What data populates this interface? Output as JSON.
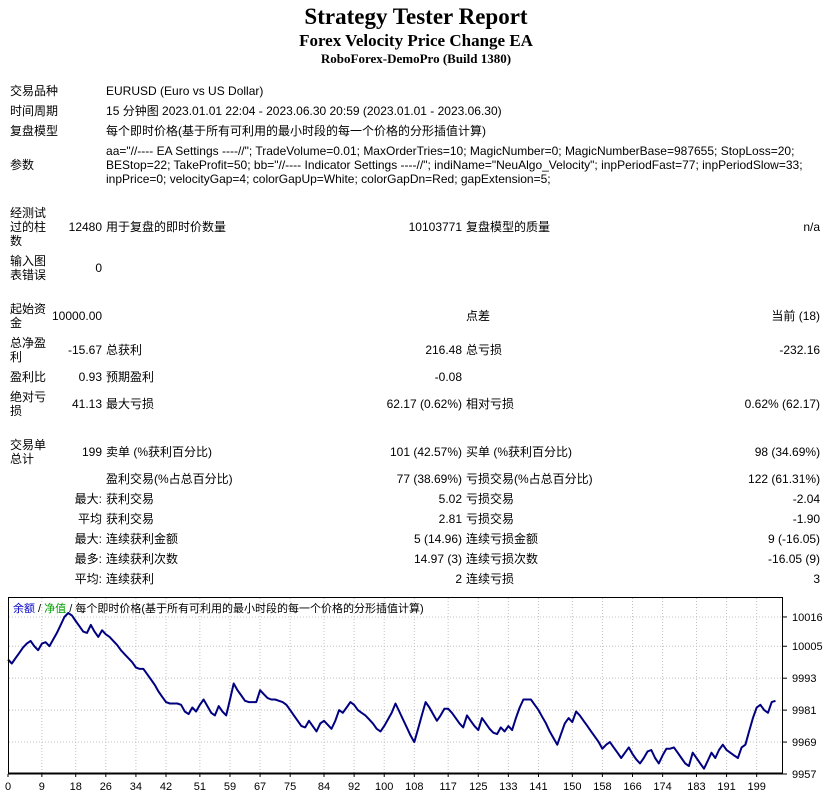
{
  "header": {
    "title": "Strategy Tester Report",
    "ea_name": "Forex Velocity Price Change EA",
    "server": "RoboForex-DemoPro (Build 1380)"
  },
  "report": {
    "rows": [
      {
        "kind": "wide",
        "label": "交易品种",
        "value": "EURUSD (Euro vs US Dollar)"
      },
      {
        "kind": "wide",
        "label": "时间周期",
        "value": "15 分钟图 2023.01.01 22:04 - 2023.06.30 20:59 (2023.01.01 - 2023.06.30)"
      },
      {
        "kind": "wide",
        "label": "复盘模型",
        "value": "每个即时价格(基于所有可利用的最小时段的每一个价格的分形插值计算)"
      },
      {
        "kind": "wide",
        "label": "参数",
        "value": "aa=\"//---- EA Settings ----//\"; TradeVolume=0.01; MaxOrderTries=10; MagicNumber=0; MagicNumberBase=987655; StopLoss=20; BEStop=22; TakeProfit=50; bb=\"//---- Indicator Settings ----//\"; indiName=\"NeuAlgo_Velocity\"; inpPeriodFast=77; inpPeriodSlow=33; inpPrice=0; velocityGap=4; colorGapUp=White; colorGapDn=Red; gapExtension=5;"
      },
      {
        "kind": "gap"
      },
      {
        "kind": "cells",
        "cells": [
          "经测试过的柱数",
          "12480",
          "用于复盘的即时价数量",
          "10103771",
          "复盘模型的质量",
          "n/a"
        ]
      },
      {
        "kind": "cells",
        "cells": [
          "输入图表错误",
          "0",
          "",
          "",
          "",
          ""
        ]
      },
      {
        "kind": "gap"
      },
      {
        "kind": "cells",
        "cells": [
          "起始资金",
          "10000.00",
          "",
          "",
          "点差",
          "当前 (18)"
        ]
      },
      {
        "kind": "cells",
        "cells": [
          "总净盈利",
          "-15.67",
          "总获利",
          "216.48",
          "总亏损",
          "-232.16"
        ]
      },
      {
        "kind": "cells",
        "cells": [
          "盈利比",
          "0.93",
          "预期盈利",
          "-0.08",
          "",
          ""
        ]
      },
      {
        "kind": "cells",
        "cells": [
          "绝对亏损",
          "41.13",
          "最大亏损",
          "62.17 (0.62%)",
          "相对亏损",
          "0.62% (62.17)"
        ]
      },
      {
        "kind": "gap"
      },
      {
        "kind": "cells",
        "cells": [
          "交易单总计",
          "199",
          "卖单 (%获利百分比)",
          "101 (42.57%)",
          "买单 (%获利百分比)",
          "98 (34.69%)"
        ]
      },
      {
        "kind": "cells",
        "cells": [
          "",
          "",
          "盈利交易(%占总百分比)",
          "77 (38.69%)",
          "亏损交易(%占总百分比)",
          "122 (61.31%)"
        ]
      },
      {
        "kind": "cells",
        "cells": [
          "",
          "最大:",
          "获利交易",
          "5.02",
          "亏损交易",
          "-2.04"
        ]
      },
      {
        "kind": "cells",
        "cells": [
          "",
          "平均",
          "获利交易",
          "2.81",
          "亏损交易",
          "-1.90"
        ]
      },
      {
        "kind": "cells",
        "cells": [
          "",
          "最大:",
          "连续获利金额",
          "5 (14.96)",
          "连续亏损金额",
          "9 (-16.05)"
        ]
      },
      {
        "kind": "cells",
        "cells": [
          "",
          "最多:",
          "连续获利次数",
          "14.97 (3)",
          "连续亏损次数",
          "-16.05 (9)"
        ]
      },
      {
        "kind": "cells",
        "cells": [
          "",
          "平均:",
          "连续获利",
          "2",
          "连续亏损",
          "3"
        ]
      }
    ]
  },
  "chart_data": {
    "type": "line",
    "legend": {
      "balance": "余额",
      "separator": " / ",
      "equity": "净值",
      "model": "每个即时价格(基于所有可利用的最小时段的每一个价格的分形插值计算)"
    },
    "colors": {
      "balance_line": "#000080",
      "balance_legend": "#0000C8",
      "equity_legend": "#00A000",
      "grid": "#C0C0C0",
      "border": "#000000"
    },
    "grid": true,
    "x_ticks": [
      0,
      9,
      18,
      26,
      34,
      42,
      51,
      59,
      67,
      75,
      84,
      92,
      100,
      108,
      117,
      125,
      133,
      141,
      150,
      158,
      166,
      174,
      183,
      191,
      199
    ],
    "y_ticks": [
      10016,
      10005,
      9993,
      9981,
      9969,
      9957
    ],
    "x_range": [
      0,
      206
    ],
    "y_range": [
      9957,
      10023.5
    ],
    "series": [
      {
        "name": "余额",
        "values": [
          10000.0,
          9998.5,
          10000.5,
          10002.5,
          10004.5,
          10006.0,
          10007.0,
          10005.0,
          10003.5,
          10006.0,
          10006.5,
          10005.0,
          10007.5,
          10010.0,
          10013.0,
          10016.0,
          10017.5,
          10016.5,
          10014.5,
          10012.5,
          10010.5,
          10010.0,
          10013.0,
          10010.5,
          10008.5,
          10011.0,
          10009.5,
          10008.5,
          10007.0,
          10005.5,
          10003.5,
          10002.0,
          10000.5,
          9999.0,
          9997.0,
          9996.5,
          9996.5,
          9994.5,
          9992.5,
          9990.5,
          9988.0,
          9986.0,
          9984.0,
          9983.5,
          9983.5,
          9983.5,
          9983.0,
          9980.5,
          9979.5,
          9982.0,
          9980.5,
          9983.0,
          9985.0,
          9982.5,
          9980.0,
          9979.0,
          9982.5,
          9980.5,
          9979.0,
          9985.0,
          9991.0,
          9988.5,
          9986.5,
          9984.5,
          9984.0,
          9984.0,
          9984.0,
          9988.5,
          9987.0,
          9985.5,
          9985.0,
          9985.0,
          9984.5,
          9984.0,
          9983.0,
          9981.0,
          9979.0,
          9977.0,
          9975.0,
          9974.5,
          9977.0,
          9975.0,
          9973.0,
          9976.0,
          9977.0,
          9975.5,
          9974.0,
          9977.0,
          9981.0,
          9980.0,
          9982.0,
          9984.0,
          9983.0,
          9981.0,
          9980.0,
          9979.0,
          9977.5,
          9976.0,
          9974.0,
          9973.0,
          9975.0,
          9977.5,
          9980.0,
          9983.5,
          9980.5,
          9977.5,
          9974.5,
          9971.5,
          9969.0,
          9974.0,
          9979.0,
          9984.0,
          9982.0,
          9979.5,
          9977.0,
          9979.0,
          9981.5,
          9981.5,
          9980.0,
          9978.0,
          9976.0,
          9974.5,
          9979.0,
          9977.0,
          9975.0,
          9973.5,
          9978.0,
          9976.0,
          9974.0,
          9972.5,
          9972.0,
          9974.5,
          9973.0,
          9975.0,
          9973.5,
          9978.0,
          9982.0,
          9985.0,
          9985.0,
          9985.0,
          9983.0,
          9981.0,
          9978.5,
          9976.0,
          9973.0,
          9970.5,
          9968.0,
          9972.0,
          9976.0,
          9978.0,
          9976.5,
          9980.5,
          9979.0,
          9977.0,
          9975.0,
          9973.0,
          9971.0,
          9969.0,
          9966.5,
          9968.0,
          9969.0,
          9967.0,
          9965.0,
          9963.0,
          9965.0,
          9967.0,
          9964.5,
          9962.5,
          9961.0,
          9963.0,
          9965.5,
          9966.0,
          9963.0,
          9961.0,
          9964.0,
          9966.5,
          9966.5,
          9967.0,
          9965.0,
          9963.0,
          9961.0,
          9960.0,
          9965.0,
          9963.0,
          9961.0,
          9959.0,
          9962.0,
          9965.0,
          9963.0,
          9966.0,
          9968.0,
          9966.0,
          9965.0,
          9964.0,
          9963.0,
          9967.0,
          9968.0,
          9973.0,
          9978.0,
          9982.0,
          9983.0,
          9981.0,
          9980.0,
          9984.0,
          9984.5
        ]
      }
    ]
  }
}
